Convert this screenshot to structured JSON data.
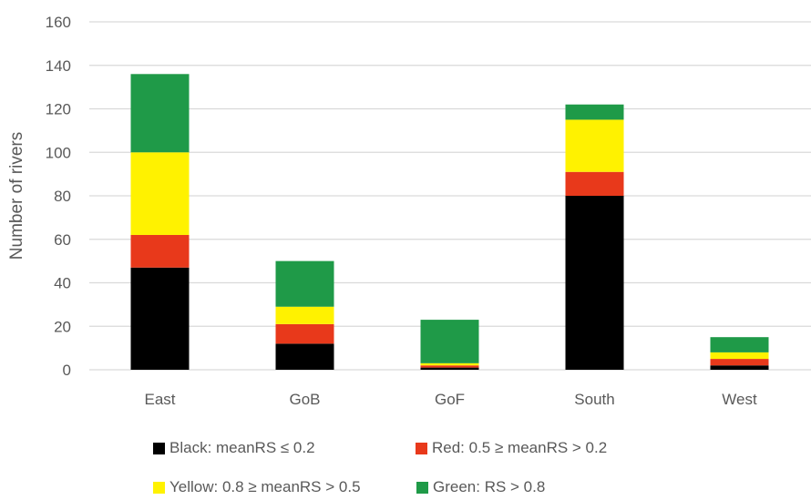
{
  "chart_data": {
    "type": "bar",
    "stacked": true,
    "categories": [
      "East",
      "GoB",
      "GoF",
      "South",
      "West"
    ],
    "series": [
      {
        "name": "Black: meanRS ≤ 0.2",
        "color": "#000000",
        "values": [
          47,
          12,
          1,
          80,
          2
        ]
      },
      {
        "name": "Red: 0.5 ≥ meanRS > 0.2",
        "color": "#e8391b",
        "values": [
          15,
          9,
          1,
          11,
          3
        ]
      },
      {
        "name": "Yellow: 0.8 ≥ meanRS > 0.5",
        "color": "#fff200",
        "values": [
          38,
          8,
          1,
          24,
          3
        ]
      },
      {
        "name": "Green: RS > 0.8",
        "color": "#1f9a48",
        "values": [
          36,
          21,
          20,
          7,
          7
        ]
      }
    ],
    "ylabel": "Number of rivers",
    "ylim": [
      0,
      160
    ],
    "yticks": [
      "0",
      "20",
      "40",
      "60",
      "80",
      "100",
      "120",
      "140",
      "160"
    ],
    "grid": true,
    "grid_color": "#d9d9d9",
    "legend_position": "bottom"
  }
}
